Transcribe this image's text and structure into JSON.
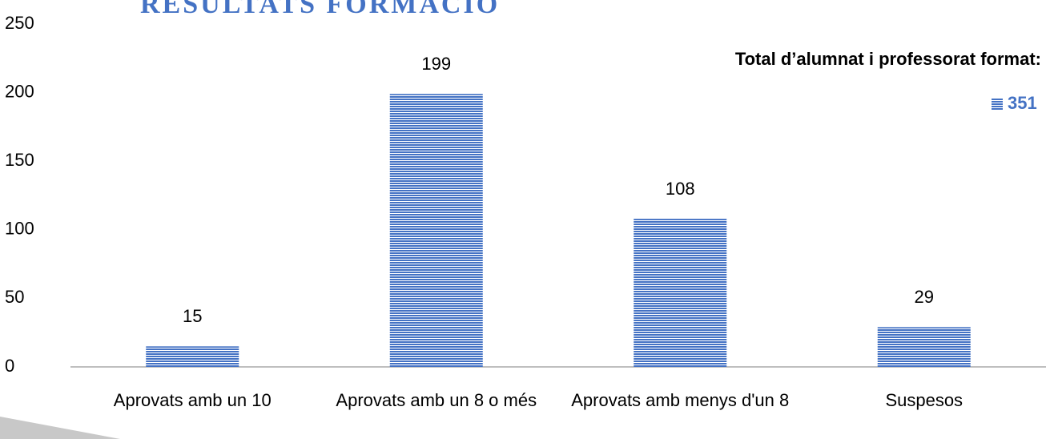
{
  "chart_data": {
    "type": "bar",
    "title": "RESULTATS FORMACIÓ",
    "legend_title": "Total d’alumnat i professorat format:",
    "categories": [
      "Aprovats amb un 10",
      "Aprovats amb un 8 o més",
      "Aprovats amb menys d'un 8",
      "Suspesos"
    ],
    "series": [
      {
        "name": "351",
        "color": "#4472c4",
        "values": [
          15,
          199,
          108,
          29
        ]
      }
    ],
    "ylim": [
      0,
      250
    ],
    "yticks": [
      0,
      50,
      100,
      150,
      200,
      250
    ],
    "grid": false,
    "legend": "top-right"
  }
}
